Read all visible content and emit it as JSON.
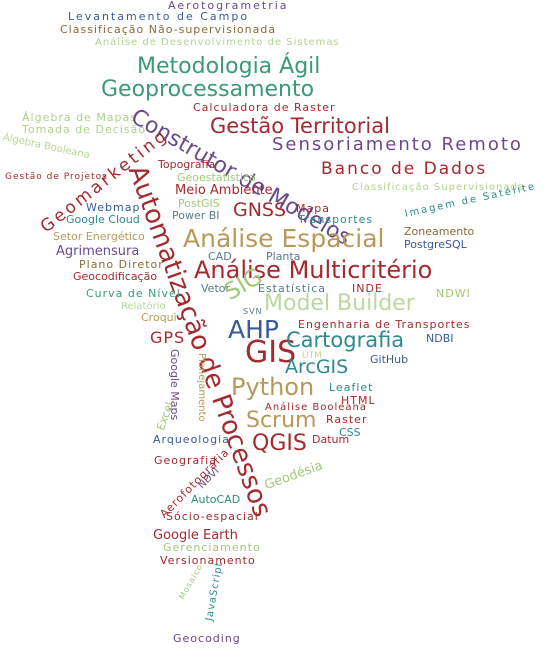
{
  "cloud": {
    "words": [
      "Aerotogrametria",
      "Levantamento de Campo",
      "Classificação Não-supervisionada",
      "Análise de Desenvolvimento de Sistemas",
      "Metodologia Ágil",
      "Geoprocessamento",
      "Calculadora de Raster",
      "Álgebra de Mapas",
      "Tomada de Decisão",
      "Álgebra Booleana",
      "Construtor de Modelos",
      "Gestão Territorial",
      "Sensoriamento Remoto",
      "Geomarketing",
      "Banco de Dados",
      "Gestão de Projetos",
      "Topografia",
      "Geoestatística",
      "Classificação Supervisionada",
      "Meio Ambiente",
      "PostGIS",
      "GNSS",
      "Mapa",
      "Imagem de Satélite",
      "Webmap",
      "Power BI",
      "Google Cloud",
      "Transportes",
      "Zoneamento",
      "Análise Espacial",
      "Setor Energético",
      "PostgreSQL",
      "CAD",
      "Planta",
      "Agrimensura",
      "Análise Multicritério",
      "Automatização de Processos",
      "Plano Diretor",
      "Geocodificação",
      "Vetor",
      "Estatística",
      "INDE",
      "Curva de Nível",
      "NDWI",
      "SIG",
      "Model Builder",
      "Relatório",
      "Croqui",
      "Engenharia de Transportes",
      "AHP",
      "SVN",
      "GPS",
      "NDBI",
      "GIS",
      "Cartografia",
      "Google Maps",
      "UTM",
      "GitHub",
      "ArcGIS",
      "Planejamento",
      "Leaflet",
      "Python",
      "HTML",
      "Análise Booleana",
      "Excel",
      "Scrum",
      "Raster",
      "Arqueologia",
      "CSS",
      "QGIS",
      "Datum",
      "Geografia",
      "Geodésia",
      "Aerofotografia",
      "NDVI",
      "AutoCAD",
      "Sócio-espacial",
      "Google Earth",
      "Gerenciamento",
      "Versionamento",
      "Mosaico",
      "JavaScript",
      "Geocoding"
    ]
  }
}
